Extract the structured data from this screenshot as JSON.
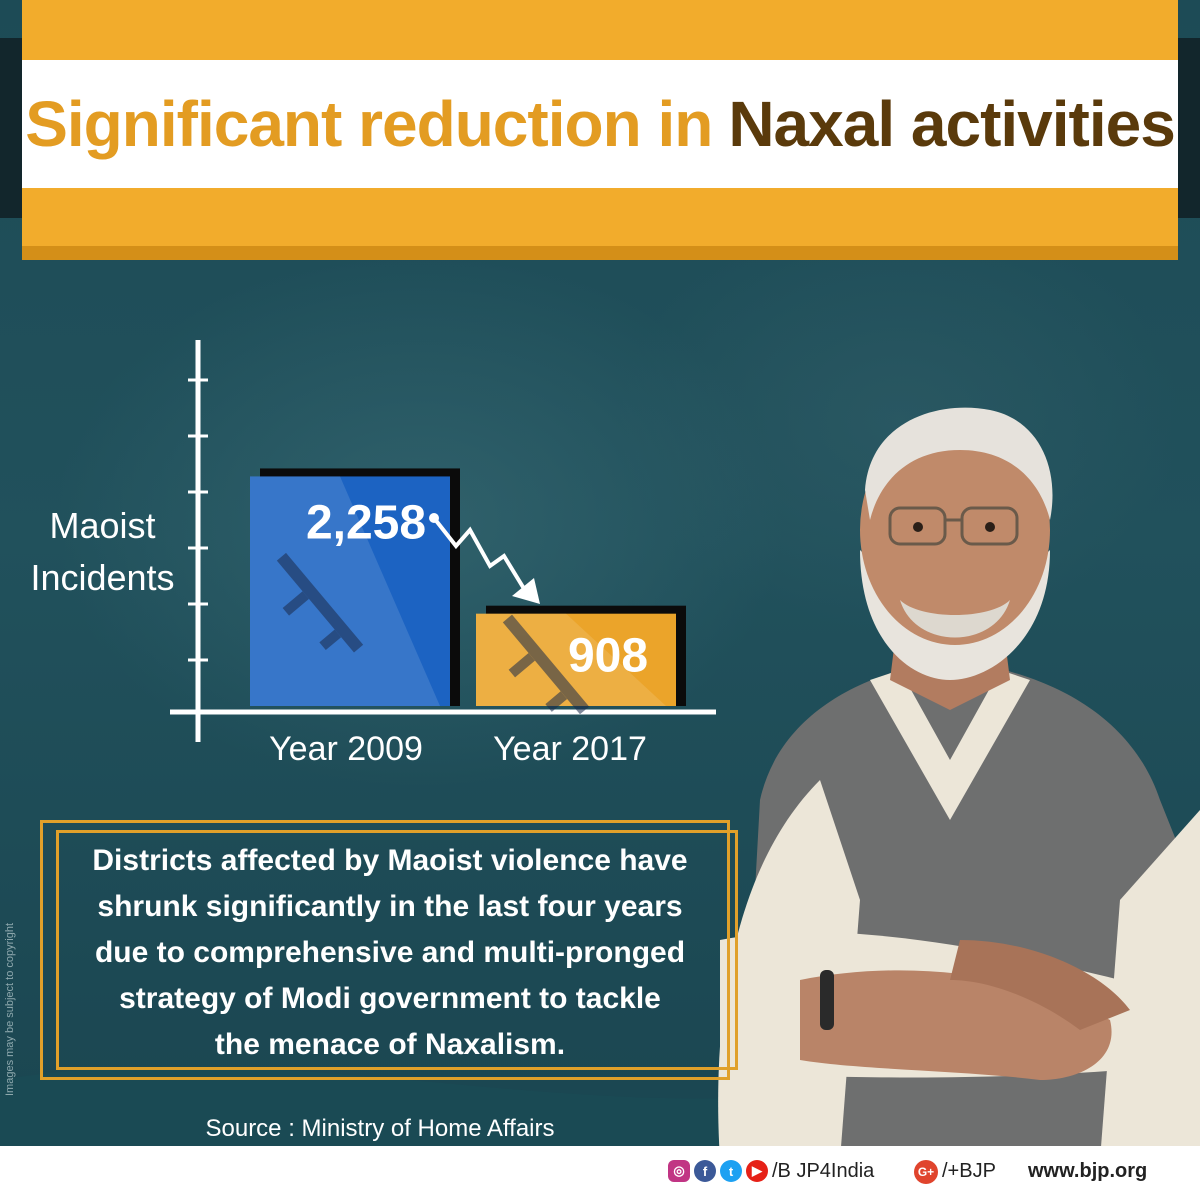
{
  "header": {
    "title_part1": "Significant reduction in",
    "title_part2": "Naxal activities"
  },
  "chart_data": {
    "type": "bar",
    "categories": [
      "Year 2009",
      "Year 2017"
    ],
    "values": [
      2258,
      908
    ],
    "value_labels": [
      "2,258",
      "908"
    ],
    "title": "",
    "xlabel": "",
    "ylabel": "Maoist Incidents",
    "ylim": [
      0,
      3600
    ],
    "grid": false,
    "colors": [
      "#1c63c2",
      "#eba42a"
    ]
  },
  "description": {
    "lines": [
      "Districts affected by Maoist violence have",
      "shrunk significantly  in the last four years",
      "due to comprehensive and multi-pronged",
      "strategy of Modi government to tackle",
      "the menace of Naxalism."
    ]
  },
  "source": "Source : Ministry of Home Affairs",
  "copyright": "Images may be subject to copyright",
  "footer": {
    "social_icons": [
      "instagram-icon",
      "facebook-icon",
      "twitter-icon",
      "youtube-icon"
    ],
    "handle": "/B JP4India",
    "gplus_label": "G+",
    "gplus_handle": "/+BJP",
    "website": "www.bjp.org"
  },
  "colors": {
    "accent_orange": "#f2ac2c",
    "title_dark": "#5a3a0b",
    "background_teal": "#1e4a55"
  }
}
